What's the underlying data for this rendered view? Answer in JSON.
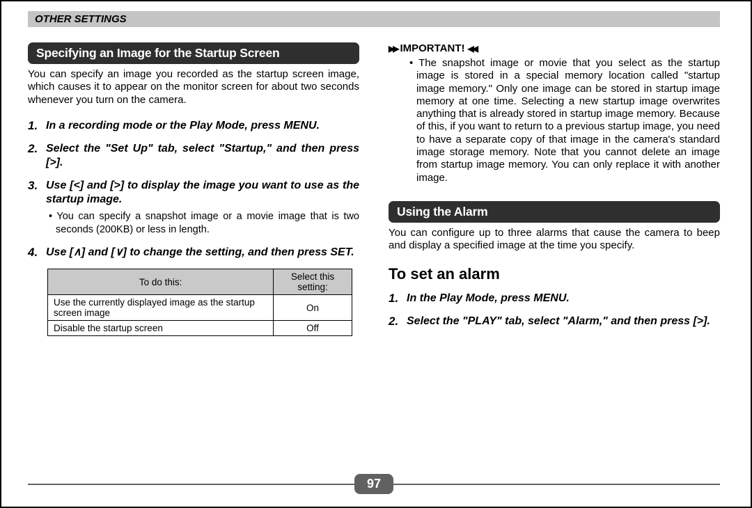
{
  "header": {
    "title": "OTHER SETTINGS"
  },
  "page_number": "97",
  "left": {
    "heading": "Specifying an Image for the Startup Screen",
    "intro": "You can specify an image you recorded as the startup screen image, which causes it to appear on the monitor screen for about two seconds whenever you turn on the camera.",
    "steps": [
      {
        "text": "In a recording mode or the Play Mode, press MENU."
      },
      {
        "text": "Select the \"Set Up\" tab, select \"Startup,\" and then press [>]."
      },
      {
        "text": "Use [<] and [>] to display the image you want to use as the startup image.",
        "sub": "You can specify a snapshot image or a movie image that is two seconds (200KB) or less in length."
      },
      {
        "text": "Use [∧] and [∨] to change the setting, and then press SET."
      }
    ],
    "table": {
      "columns": [
        "To do this:",
        "Select this setting:"
      ],
      "rows": [
        [
          "Use the currently displayed image as the startup screen image",
          "On"
        ],
        [
          "Disable the startup screen",
          "Off"
        ]
      ]
    }
  },
  "right": {
    "important_label": "IMPORTANT!",
    "important_body": "The snapshot image or movie that you select as the startup image is stored in a special memory location called \"startup image memory.\" Only one image can be stored in startup image memory at one time. Selecting a new startup image overwrites anything that is already stored in startup image memory. Because of this, if you want to return to a previous startup image, you need to have a separate copy of that image in the camera's standard image storage memory. Note that you cannot delete an image from startup image memory. You can only replace it with another image.",
    "heading": "Using the Alarm",
    "intro": "You can configure up to three alarms that cause the camera to beep and display a specified image at the time you specify.",
    "subhead": "To set an alarm",
    "steps": [
      {
        "text": "In the Play Mode, press MENU."
      },
      {
        "text": "Select the \"PLAY\" tab, select \"Alarm,\" and then press [>]."
      }
    ]
  }
}
